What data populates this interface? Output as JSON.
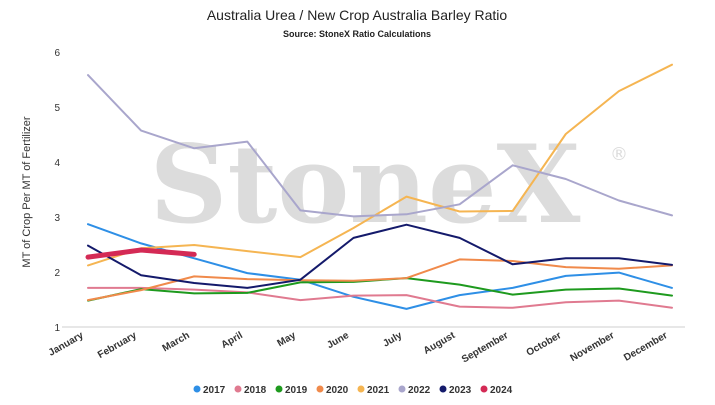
{
  "chart_data": {
    "type": "line",
    "title": "Australia Urea / New Crop Australia Barley Ratio",
    "subtitle": "Source: StoneX Ratio Calculations",
    "ylabel": "MT of Crop Per MT of Fertilizer",
    "xlabel": "",
    "watermark": "StoneX",
    "watermark_mark": "®",
    "ylim": [
      1,
      6
    ],
    "yticks": [
      1,
      2,
      3,
      4,
      5,
      6
    ],
    "grid": false,
    "legend_position": "bottom",
    "categories": [
      "January",
      "February",
      "March",
      "April",
      "May",
      "June",
      "July",
      "August",
      "September",
      "October",
      "November",
      "December"
    ],
    "series": [
      {
        "name": "2017",
        "color": "#2e8fe6",
        "values": [
          2.87,
          2.52,
          2.25,
          1.98,
          1.86,
          1.55,
          1.33,
          1.58,
          1.71,
          1.93,
          1.99,
          1.71
        ]
      },
      {
        "name": "2018",
        "color": "#e07a90",
        "values": [
          1.71,
          1.71,
          1.68,
          1.63,
          1.49,
          1.57,
          1.58,
          1.37,
          1.35,
          1.45,
          1.48,
          1.35
        ]
      },
      {
        "name": "2019",
        "color": "#1e9a1e",
        "values": [
          1.48,
          1.69,
          1.61,
          1.62,
          1.81,
          1.82,
          1.89,
          1.77,
          1.59,
          1.68,
          1.7,
          1.57
        ]
      },
      {
        "name": "2020",
        "color": "#f08a4b",
        "values": [
          1.49,
          1.67,
          1.92,
          1.87,
          1.85,
          1.84,
          1.89,
          2.23,
          2.2,
          2.09,
          2.06,
          2.12
        ]
      },
      {
        "name": "2021",
        "color": "#f5b552",
        "values": [
          2.12,
          2.43,
          2.49,
          2.38,
          2.27,
          2.8,
          3.37,
          3.1,
          3.11,
          4.51,
          5.29,
          5.77
        ]
      },
      {
        "name": "2022",
        "color": "#a9a6cc",
        "values": [
          5.58,
          4.57,
          4.25,
          4.37,
          3.12,
          3.01,
          3.05,
          3.23,
          3.94,
          3.69,
          3.3,
          3.03
        ]
      },
      {
        "name": "2023",
        "color": "#141a6b",
        "values": [
          2.48,
          1.94,
          1.8,
          1.71,
          1.86,
          2.62,
          2.86,
          2.62,
          2.14,
          2.25,
          2.25,
          2.13
        ]
      },
      {
        "name": "2024",
        "color": "#d42a55",
        "values": [
          2.27,
          2.4,
          2.32,
          null,
          null,
          null,
          null,
          null,
          null,
          null,
          null,
          null
        ]
      }
    ]
  }
}
